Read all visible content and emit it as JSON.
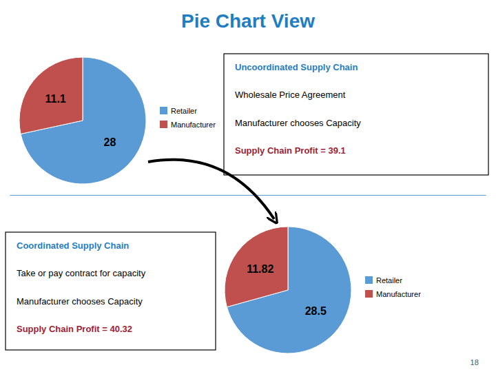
{
  "chart_data": [
    {
      "type": "pie",
      "title": "Pie Chart View",
      "categories": [
        "Retailer",
        "Manufacturer"
      ],
      "values": [
        28,
        11.1
      ],
      "colors": [
        "#5B9BD5",
        "#C0504D"
      ],
      "data_labels": true,
      "legend": "right",
      "annotations": [
        "Uncoordinated Supply Chain",
        "Wholesale Price Agreement",
        "Manufacturer chooses Capacity",
        "Supply Chain Profit = 39.1"
      ]
    },
    {
      "type": "pie",
      "categories": [
        "Retailer",
        "Manufacturer"
      ],
      "values": [
        28.5,
        11.82
      ],
      "colors": [
        "#5B9BD5",
        "#C0504D"
      ],
      "data_labels": true,
      "legend": "right",
      "annotations": [
        "Coordinated Supply Chain",
        "Take or pay contract for capacity",
        "Manufacturer chooses Capacity",
        "Supply Chain Profit = 40.32"
      ]
    }
  ],
  "footer": "18"
}
